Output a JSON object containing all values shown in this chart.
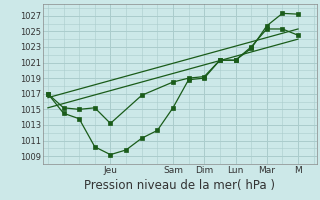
{
  "background_color": "#cce8e8",
  "grid_color": "#aacccc",
  "line_color": "#1a5c1a",
  "marker_color": "#1a5c1a",
  "ylabel_ticks": [
    1009,
    1011,
    1013,
    1015,
    1017,
    1019,
    1021,
    1023,
    1025,
    1027
  ],
  "ylim": [
    1008.0,
    1028.5
  ],
  "xlim": [
    -0.15,
    8.6
  ],
  "xlabel": "Pression niveau de la mer( hPa )",
  "xlabel_fontsize": 8.5,
  "day_labels": [
    "Jeu",
    "Sam",
    "Dim",
    "Lun",
    "Mar",
    "M"
  ],
  "day_positions": [
    2.0,
    4.0,
    5.0,
    6.0,
    7.0,
    8.0
  ],
  "line1_zigzag": {
    "x": [
      0.0,
      0.5,
      1.0,
      1.5,
      2.0,
      2.5,
      3.0,
      3.5,
      4.0,
      4.5,
      5.0,
      5.5,
      6.0,
      6.5,
      7.0,
      7.5,
      8.0
    ],
    "y": [
      1017.0,
      1014.5,
      1013.8,
      1010.2,
      1009.2,
      1009.8,
      1011.3,
      1012.3,
      1015.2,
      1018.8,
      1019.0,
      1021.3,
      1021.3,
      1022.8,
      1025.7,
      1027.3,
      1027.2
    ]
  },
  "line2_smooth": {
    "x": [
      0.0,
      0.5,
      1.0,
      1.5,
      2.0,
      3.0,
      4.0,
      4.5,
      5.0,
      5.5,
      6.0,
      6.5,
      7.0,
      7.5,
      8.0
    ],
    "y": [
      1017.0,
      1015.2,
      1015.0,
      1015.2,
      1013.2,
      1016.8,
      1018.5,
      1019.0,
      1019.2,
      1021.3,
      1021.3,
      1023.0,
      1025.3,
      1025.3,
      1024.5
    ]
  },
  "line3_trend_low": {
    "x": [
      0.0,
      8.0
    ],
    "y": [
      1015.2,
      1024.0
    ]
  },
  "line4_trend_high": {
    "x": [
      0.0,
      8.0
    ],
    "y": [
      1016.5,
      1025.3
    ]
  }
}
